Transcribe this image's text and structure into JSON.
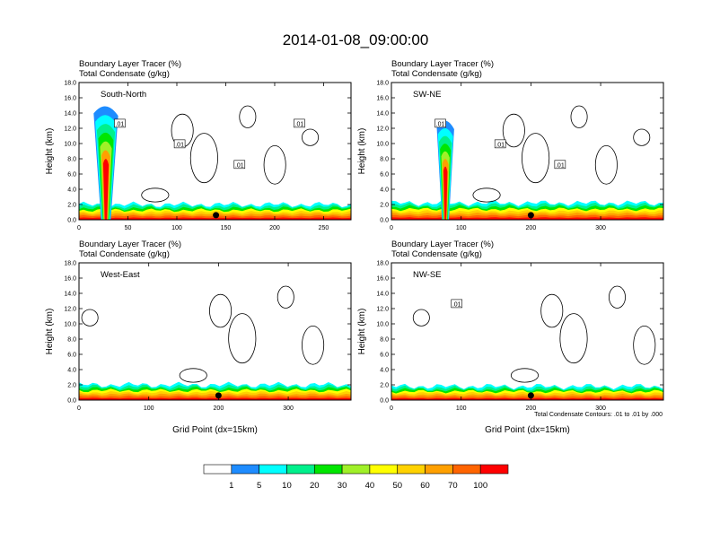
{
  "title": "2014-01-08_09:00:00",
  "footnote": "Total Condensate Contours: .01 to .01 by .000",
  "colorbar": {
    "labels": [
      "1",
      "5",
      "10",
      "20",
      "30",
      "40",
      "50",
      "60",
      "70",
      "100"
    ],
    "colors": [
      "#ffffff",
      "#1e8cff",
      "#00ffff",
      "#00f08c",
      "#00e600",
      "#a0f028",
      "#ffff00",
      "#ffd200",
      "#ffa000",
      "#ff6400",
      "#ff0000"
    ]
  },
  "chart_data": [
    {
      "type": "heatmap",
      "label_line1": "Boundary Layer Tracer   (%)",
      "label_line2": "Total Condensate   (g/kg)",
      "panel_name": "South-North",
      "ylabel": "Height (km)",
      "xlabel": "",
      "xlim": [
        0,
        278
      ],
      "ylim": [
        0,
        18
      ],
      "xticks": [
        0,
        50,
        100,
        150,
        200,
        250
      ],
      "yticks": [
        "0.0",
        "2.0",
        "4.0",
        "6.0",
        "8.0",
        "10.0",
        "12.0",
        "14.0",
        "16.0",
        "18.0"
      ],
      "tracer_plume": {
        "x_range": [
          15,
          40
        ],
        "top_km": 15.5
      },
      "boundary_layer_top_km": 2.0,
      "contour_labels": [
        ".01",
        ".01",
        ".01",
        ".01"
      ],
      "marker_x": 140
    },
    {
      "type": "heatmap",
      "label_line1": "Boundary Layer Tracer   (%)",
      "label_line2": "Total Condensate   (g/kg)",
      "panel_name": "SW-NE",
      "ylabel": "Height (km)",
      "xlabel": "",
      "xlim": [
        0,
        390
      ],
      "ylim": [
        0,
        18
      ],
      "xticks": [
        0,
        100,
        200,
        300
      ],
      "yticks": [
        "0.0",
        "2.0",
        "4.0",
        "6.0",
        "8.0",
        "10.0",
        "12.0",
        "14.0",
        "16.0",
        "18.0"
      ],
      "tracer_plume": {
        "x_range": [
          65,
          90
        ],
        "top_km": 13.5
      },
      "boundary_layer_top_km": 2.2,
      "contour_labels": [
        ".01",
        ".01",
        ".01"
      ],
      "marker_x": 200
    },
    {
      "type": "heatmap",
      "label_line1": "Boundary Layer Tracer   (%)",
      "label_line2": "Total Condensate   (g/kg)",
      "panel_name": "West-East",
      "ylabel": "Height (km)",
      "xlabel": "Grid Point (dx=15km)",
      "xlim": [
        0,
        390
      ],
      "ylim": [
        0,
        18
      ],
      "xticks": [
        0,
        100,
        200,
        300
      ],
      "yticks": [
        "0.0",
        "2.0",
        "4.0",
        "6.0",
        "8.0",
        "10.0",
        "12.0",
        "14.0",
        "16.0",
        "18.0"
      ],
      "tracer_plume": null,
      "boundary_layer_top_km": 2.0,
      "contour_labels": [],
      "marker_x": 200
    },
    {
      "type": "heatmap",
      "label_line1": "Boundary Layer Tracer   (%)",
      "label_line2": "Total Condensate   (g/kg)",
      "panel_name": "NW-SE",
      "ylabel": "Height (km)",
      "xlabel": "Grid Point (dx=15km)",
      "xlim": [
        0,
        390
      ],
      "ylim": [
        0,
        18
      ],
      "xticks": [
        0,
        100,
        200,
        300
      ],
      "yticks": [
        "0.0",
        "2.0",
        "4.0",
        "6.0",
        "8.0",
        "10.0",
        "12.0",
        "14.0",
        "16.0",
        "18.0"
      ],
      "tracer_plume": null,
      "boundary_layer_top_km": 1.8,
      "contour_labels": [
        ".01"
      ],
      "marker_x": 200
    }
  ]
}
